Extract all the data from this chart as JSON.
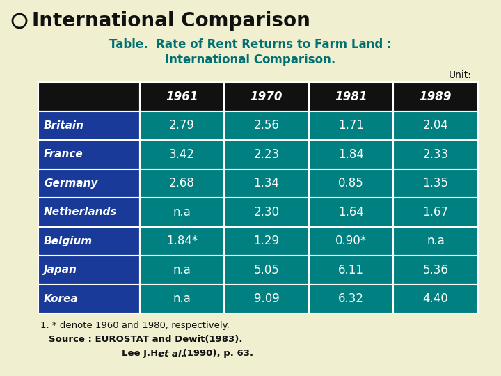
{
  "title": "International Comparison",
  "subtitle_line1": "Table.  Rate of Rent Returns to Farm Land :",
  "subtitle_line2": "International Comparison.",
  "unit_label": "Unit:",
  "background_color": "#f0f0d0",
  "header_bg": "#111111",
  "header_text_color": "#ffffff",
  "row_bg_dark": "#1a3a99",
  "row_bg_light": "#008080",
  "row_text_color": "#ffffff",
  "columns": [
    "",
    "1961",
    "1970",
    "1981",
    "1989"
  ],
  "rows": [
    [
      "Britain",
      "2.79",
      "2.56",
      "1.71",
      "2.04"
    ],
    [
      "France",
      "3.42",
      "2.23",
      "1.84",
      "2.33"
    ],
    [
      "Germany",
      "2.68",
      "1.34",
      "0.85",
      "1.35"
    ],
    [
      "Netherlands",
      "n.a",
      "2.30",
      "1.64",
      "1.67"
    ],
    [
      "Belgium",
      "1.84*",
      "1.29",
      "0.90*",
      "n.a"
    ],
    [
      "Japan",
      "n.a",
      "5.05",
      "6.11",
      "5.36"
    ],
    [
      "Korea",
      "n.a",
      "9.09",
      "6.32",
      "4.40"
    ]
  ],
  "footnote1": "1. * denote 1960 and 1980, respectively.",
  "footnote2": "Source : EUROSTAT and Dewit(1983).",
  "footnote3_pre": "Lee J.H. ",
  "footnote3_italic": "et al.",
  "footnote3_post": " (1990), p. 63.",
  "title_color": "#111111",
  "subtitle_color": "#007070",
  "footnote_color": "#111111"
}
